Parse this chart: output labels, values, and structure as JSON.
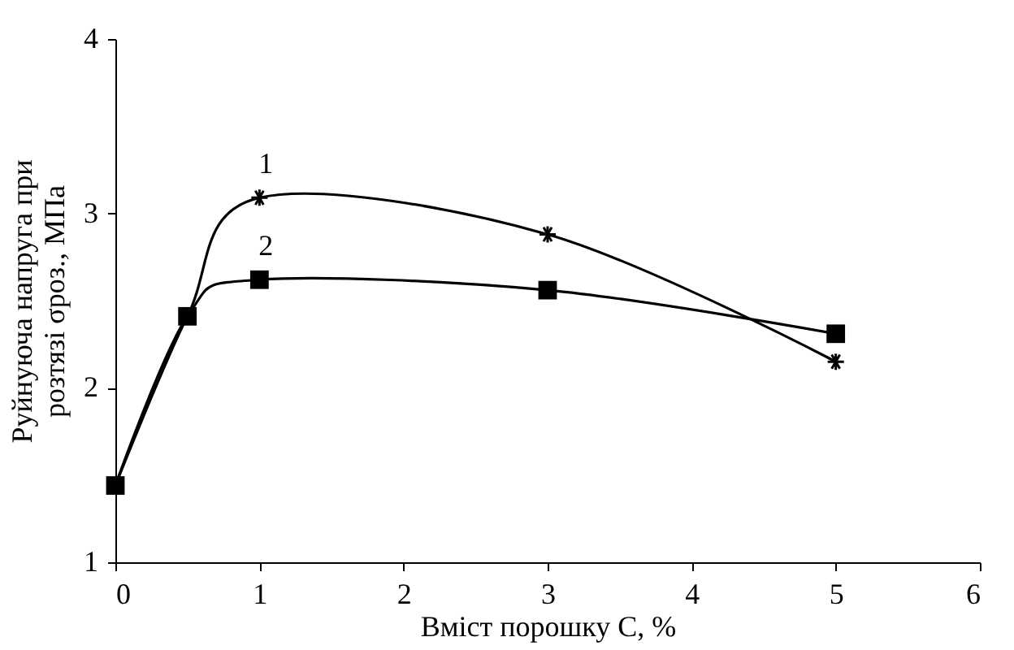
{
  "chart_data": {
    "type": "line",
    "xlabel": "Вміст порошку C, %",
    "ylabel": "Руйнуюча напруга при\nрозтязі σроз., МПа",
    "x": [
      0,
      0.5,
      1,
      3,
      5
    ],
    "series": [
      {
        "name": "2",
        "color": "#000000",
        "marker": "square",
        "values": [
          1.44,
          2.41,
          2.62,
          2.56,
          2.31
        ]
      },
      {
        "name": "1",
        "color": "#000000",
        "marker": "cross",
        "values": [
          1.44,
          2.41,
          3.09,
          2.88,
          2.15
        ]
      }
    ],
    "xlim": [
      0,
      6
    ],
    "xticks": [
      0,
      1,
      2,
      3,
      4,
      5,
      6
    ],
    "ylim": [
      1,
      4
    ],
    "yticks": [
      1,
      2,
      3,
      4
    ],
    "grid": false
  }
}
